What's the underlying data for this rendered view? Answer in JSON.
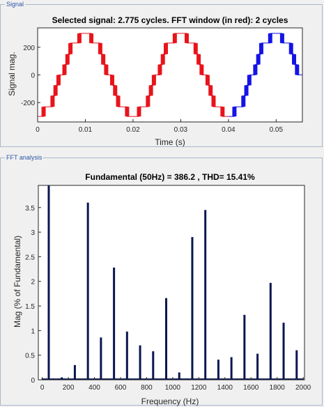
{
  "panels": {
    "signal_title": "Signal",
    "fft_title": "FFT analysis"
  },
  "colors": {
    "window_segment": "#e8141c",
    "outside_segment": "#1414e6",
    "bars": "#0a1650",
    "axis": "#262626"
  },
  "chart_data": [
    {
      "type": "line",
      "title": "Selected signal: 2.775 cycles. FFT window (in red): 2 cycles",
      "xlabel": "Time (s)",
      "ylabel": "Signal mag.",
      "xlim": [
        0,
        0.0555
      ],
      "ylim": [
        -340,
        340
      ],
      "xticks": [
        0,
        0.01,
        0.02,
        0.03,
        0.04,
        0.05
      ],
      "xtick_labels": [
        "0",
        "0.01",
        "0.02",
        "0.03",
        "0.04",
        "0.05"
      ],
      "yticks": [
        200,
        0,
        -200
      ],
      "ytick_labels": [
        "200",
        "0",
        "-200"
      ],
      "grid": false,
      "waveform": {
        "frequency_hz": 50,
        "levels": [
          -300,
          -230,
          -150,
          -75,
          0,
          75,
          150,
          230,
          300
        ],
        "steps_per_half_cycle": 16
      },
      "series": [
        {
          "x_range": [
            0,
            0.04
          ],
          "color": "#e8141c"
        },
        {
          "x_range": [
            0.04,
            0.0555
          ],
          "color": "#1414e6"
        }
      ]
    },
    {
      "type": "bar",
      "title": "Fundamental (50Hz) = 386.2 , THD= 15.41%",
      "xlabel": "Frequency (Hz)",
      "ylabel": "Mag (% of Fundamental)",
      "xlim": [
        -30,
        2010
      ],
      "ylim": [
        0,
        3.95
      ],
      "xticks": [
        0,
        200,
        400,
        600,
        800,
        1000,
        1200,
        1400,
        1600,
        1800,
        2000
      ],
      "xtick_labels": [
        "0",
        "200",
        "400",
        "600",
        "800",
        "1000",
        "1200",
        "1400",
        "1600",
        "1800",
        "2000"
      ],
      "yticks": [
        0,
        0.5,
        1,
        1.5,
        2,
        2.5,
        3,
        3.5
      ],
      "ytick_labels": [
        "0",
        "0.5",
        "1",
        "1.5",
        "2",
        "2.5",
        "3",
        "3.5"
      ],
      "grid": false,
      "x": [
        50,
        150,
        250,
        350,
        450,
        550,
        650,
        750,
        850,
        950,
        1050,
        1150,
        1250,
        1350,
        1450,
        1550,
        1650,
        1750,
        1850,
        1950
      ],
      "values": [
        3.95,
        0.05,
        0.3,
        3.6,
        0.86,
        2.28,
        0.98,
        0.7,
        0.58,
        1.66,
        0.15,
        2.9,
        3.45,
        0.41,
        0.46,
        1.32,
        0.53,
        1.97,
        1.16,
        0.6
      ]
    }
  ]
}
